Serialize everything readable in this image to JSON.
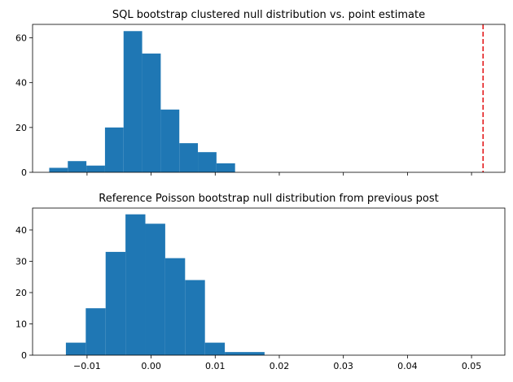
{
  "chart_data": [
    {
      "type": "histogram",
      "title": "SQL bootstrap clustered null distribution vs. point estimate",
      "xlim": [
        -0.0185,
        0.0552
      ],
      "ylim": [
        0,
        66
      ],
      "xticks": [
        -0.01,
        0.0,
        0.01,
        0.02,
        0.03,
        0.04,
        0.05
      ],
      "xtick_labels_visible": false,
      "yticks": [
        0,
        20,
        40,
        60
      ],
      "ytick_labels": [
        "0",
        "20",
        "40",
        "60"
      ],
      "bar_color": "#1f77b4",
      "bins": [
        {
          "x0": -0.0159,
          "x1": -0.013,
          "count": 2
        },
        {
          "x0": -0.013,
          "x1": -0.0101,
          "count": 5
        },
        {
          "x0": -0.0101,
          "x1": -0.0072,
          "count": 3
        },
        {
          "x0": -0.0072,
          "x1": -0.0043,
          "count": 20
        },
        {
          "x0": -0.0043,
          "x1": -0.0014,
          "count": 63
        },
        {
          "x0": -0.0014,
          "x1": 0.0015,
          "count": 53
        },
        {
          "x0": 0.0015,
          "x1": 0.0044,
          "count": 28
        },
        {
          "x0": 0.0044,
          "x1": 0.0073,
          "count": 13
        },
        {
          "x0": 0.0073,
          "x1": 0.0102,
          "count": 9
        },
        {
          "x0": 0.0102,
          "x1": 0.0131,
          "count": 4
        }
      ],
      "point_estimate": {
        "x": 0.0518,
        "color": "#e31a1c",
        "style": "dashed"
      }
    },
    {
      "type": "histogram",
      "title": "Reference Poisson bootstrap null distribution from previous post",
      "xlim": [
        -0.0185,
        0.0552
      ],
      "ylim": [
        0,
        47
      ],
      "xticks": [
        -0.01,
        0.0,
        0.01,
        0.02,
        0.03,
        0.04,
        0.05
      ],
      "xtick_labels": [
        "−0.01",
        "0.00",
        "0.01",
        "0.02",
        "0.03",
        "0.04",
        "0.05"
      ],
      "xtick_labels_visible": true,
      "yticks": [
        0,
        10,
        20,
        30,
        40
      ],
      "ytick_labels": [
        "0",
        "10",
        "20",
        "30",
        "40"
      ],
      "bar_color": "#1f77b4",
      "bins": [
        {
          "x0": -0.0133,
          "x1": -0.0102,
          "count": 4
        },
        {
          "x0": -0.0102,
          "x1": -0.0071,
          "count": 15
        },
        {
          "x0": -0.0071,
          "x1": -0.004,
          "count": 33
        },
        {
          "x0": -0.004,
          "x1": -0.0009,
          "count": 45
        },
        {
          "x0": -0.0009,
          "x1": 0.0022,
          "count": 42
        },
        {
          "x0": 0.0022,
          "x1": 0.0053,
          "count": 31
        },
        {
          "x0": 0.0053,
          "x1": 0.0084,
          "count": 24
        },
        {
          "x0": 0.0084,
          "x1": 0.0115,
          "count": 4
        },
        {
          "x0": 0.0115,
          "x1": 0.0146,
          "count": 1
        },
        {
          "x0": 0.0146,
          "x1": 0.0177,
          "count": 1
        }
      ]
    }
  ]
}
